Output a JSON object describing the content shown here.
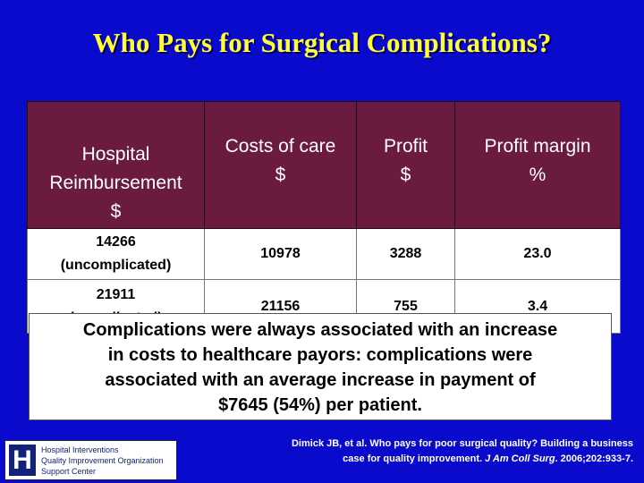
{
  "title": "Who Pays for Surgical Complications?",
  "table": {
    "header": [
      [
        "Hospital",
        "Reimbursement",
        "$"
      ],
      [
        "Costs of care",
        "$"
      ],
      [
        "Profit",
        "$"
      ],
      [
        "Profit margin",
        "%"
      ]
    ],
    "rows": [
      [
        [
          "14266",
          "(uncomplicated)"
        ],
        "10978",
        "3288",
        "23.0"
      ],
      [
        [
          "21911",
          "(complicated)"
        ],
        "21156",
        "755",
        "3.4"
      ]
    ]
  },
  "summary": [
    "Complications were always associated with an increase",
    "in costs to healthcare payors: complications were",
    "associated with an average increase in payment of",
    "$7645 (54%) per patient."
  ],
  "logo": {
    "mark": "H",
    "lines": [
      "Hospital Interventions",
      "Quality Improvement Organization",
      "Support Center"
    ]
  },
  "citation": [
    "Dimick JB, et al. Who pays for poor surgical quality? Building a business",
    [
      "case for quality improvement. ",
      "J Am Coll Surg",
      ". 2006;202:933-7."
    ]
  ]
}
